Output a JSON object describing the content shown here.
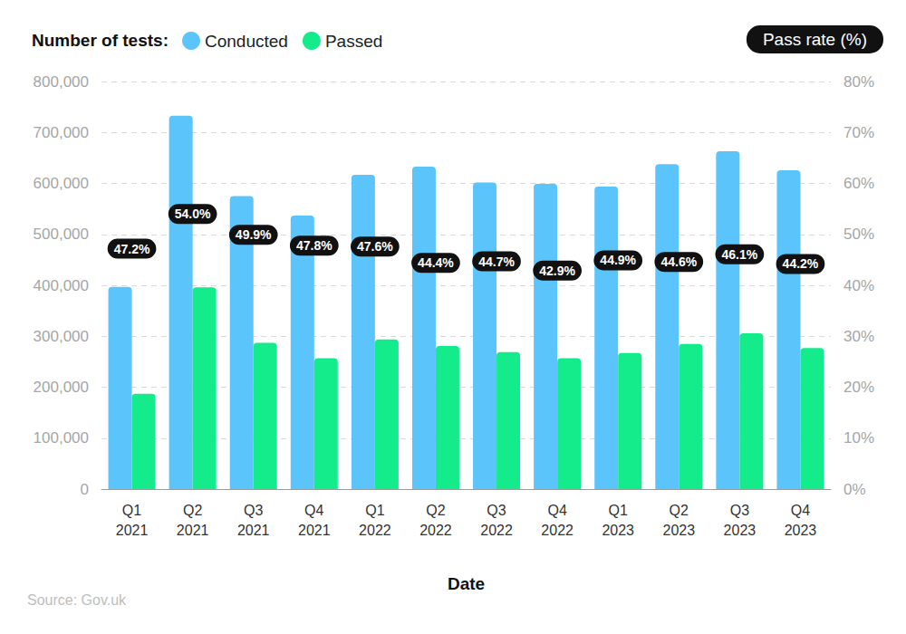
{
  "chart_data": {
    "type": "bar",
    "legend_title": "Number of tests:",
    "x_label": "Date",
    "source": "Source: Gov.uk",
    "categories": [
      "Q1\n2021",
      "Q2\n2021",
      "Q3\n2021",
      "Q4\n2021",
      "Q1\n2022",
      "Q2\n2022",
      "Q3\n2022",
      "Q4\n2022",
      "Q1\n2023",
      "Q2\n2023",
      "Q3\n2023",
      "Q4\n2023"
    ],
    "series": [
      {
        "name": "Conducted",
        "type": "bar",
        "color": "#5bc4fa",
        "values": [
          397000,
          733000,
          575000,
          537000,
          617000,
          633000,
          602000,
          599000,
          594000,
          638000,
          663000,
          626000
        ]
      },
      {
        "name": "Passed",
        "type": "bar",
        "color": "#14ec8c",
        "values": [
          187000,
          396000,
          287000,
          257000,
          294000,
          281000,
          269000,
          257000,
          267000,
          285000,
          306000,
          277000
        ]
      },
      {
        "name": "Pass rate (%)",
        "type": "line",
        "axis": "y2",
        "line_style": "none",
        "marker": "none",
        "data_labels": true,
        "values": [
          47.2,
          54.0,
          49.9,
          47.8,
          47.6,
          44.4,
          44.7,
          42.9,
          44.9,
          44.6,
          46.1,
          44.2
        ],
        "value_labels": [
          "47.2%",
          "54.0%",
          "49.9%",
          "47.8%",
          "47.6%",
          "44.4%",
          "44.7%",
          "42.9%",
          "44.9%",
          "44.6%",
          "46.1%",
          "44.2%"
        ]
      }
    ],
    "ylim": [
      0,
      800000
    ],
    "yticks": [
      0,
      {
        "value": 100000,
        "label": "100,000"
      },
      {
        "value": 200000,
        "label": "200,000"
      },
      {
        "value": 300000,
        "label": "300,000"
      },
      {
        "value": 400000,
        "label": "400,000"
      },
      {
        "value": 500000,
        "label": "500,000"
      },
      {
        "value": 600000,
        "label": "600,000"
      },
      {
        "value": 700000,
        "label": "700,000"
      },
      {
        "value": 800000,
        "label": "800,000"
      }
    ],
    "y2lim": [
      0,
      80
    ],
    "y2ticks": [
      {
        "value": 0,
        "label": "0%"
      },
      {
        "value": 10,
        "label": "10%"
      },
      {
        "value": 20,
        "label": "20%"
      },
      {
        "value": 30,
        "label": "30%"
      },
      {
        "value": 40,
        "label": "40%"
      },
      {
        "value": 50,
        "label": "50%"
      },
      {
        "value": 60,
        "label": "60%"
      },
      {
        "value": 70,
        "label": "70%"
      },
      {
        "value": 80,
        "label": "80%"
      }
    ],
    "grid": true,
    "legend": "top"
  }
}
